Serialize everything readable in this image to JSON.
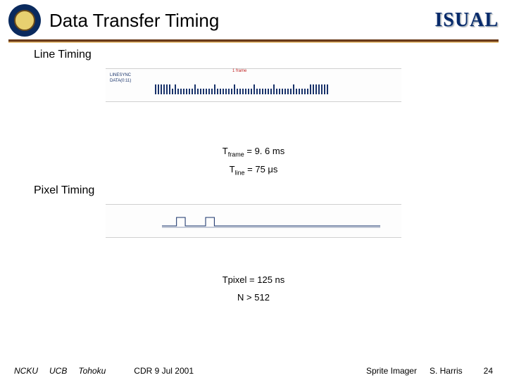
{
  "header": {
    "title": "Data Transfer Timing",
    "logo_right": "ISUAL",
    "seal_outer_color": "#0a2a5e",
    "seal_inner_color": "#e8d070",
    "rule_color": "#6a3a1a"
  },
  "sections": {
    "line_timing": {
      "label": "Line Timing",
      "diagram": {
        "top_label": "1 frame",
        "left_label_1": "LINESYNC",
        "left_label_2": "DATA(0:11)",
        "tick_color": "#18326a",
        "short_tick_h": 8,
        "tall_tick_h": 14,
        "tick_count": 62
      },
      "equations": [
        {
          "lhs": "T",
          "sub": "frame",
          "rhs": " = 9. 6 ms"
        },
        {
          "lhs": "T",
          "sub": "line",
          "rhs": " = 75 μs"
        }
      ]
    },
    "pixel_timing": {
      "label": "Pixel Timing",
      "diagram": {
        "top_label": "",
        "left_label_1": "",
        "left_label_2": "",
        "tick_color": "#18326a"
      },
      "equations": [
        {
          "lhs": "T",
          "sub": "pixel",
          "rhs": " = 125 ns"
        },
        {
          "plain": "N > 512"
        }
      ]
    }
  },
  "footer": {
    "inst1": "NCKU",
    "inst2": "UCB",
    "inst3": "Tohoku",
    "date": "CDR 9 Jul 2001",
    "project": "Sprite Imager",
    "author": "S. Harris",
    "page": "24"
  },
  "colors": {
    "text": "#000000",
    "accent_red": "#c02020",
    "accent_blue": "#18326a",
    "background": "#ffffff"
  },
  "typography": {
    "title_fontsize": 26,
    "section_fontsize": 16,
    "eq_fontsize": 13,
    "footer_fontsize": 12
  }
}
